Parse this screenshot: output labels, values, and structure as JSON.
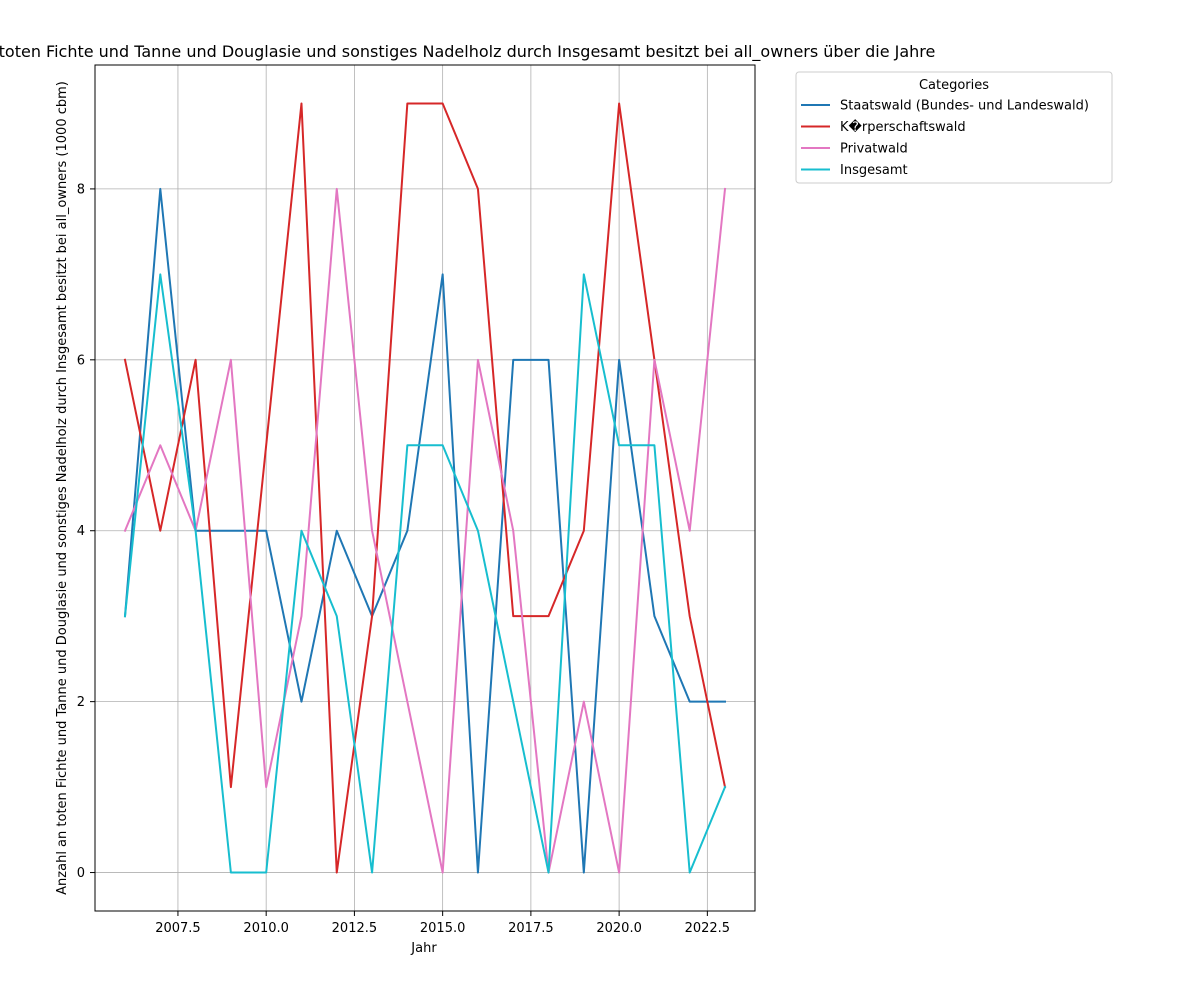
{
  "chart_data": {
    "type": "line",
    "title": "Anzahl an toten Fichte und Tanne und Douglasie und sonstiges Nadelholz durch Insgesamt besitzt bei all_owners über die Jahre",
    "xlabel": "Jahr",
    "ylabel": "Anzahl an toten Fichte und Tanne und Douglasie und sonstiges Nadelholz durch Insgesamt besitzt bei all_owners (1000 cbm)",
    "x": [
      2006,
      2007,
      2008,
      2009,
      2010,
      2011,
      2012,
      2013,
      2014,
      2015,
      2016,
      2017,
      2018,
      2019,
      2020,
      2021,
      2022,
      2023
    ],
    "xlim": [
      2005.15,
      2023.85
    ],
    "ylim": [
      -0.45,
      9.45
    ],
    "xticks": [
      2007.5,
      2010.0,
      2012.5,
      2015.0,
      2017.5,
      2020.0,
      2022.5
    ],
    "xtick_labels": [
      "2007.5",
      "2010.0",
      "2012.5",
      "2015.0",
      "2017.5",
      "2020.0",
      "2022.5"
    ],
    "yticks": [
      0,
      2,
      4,
      6,
      8
    ],
    "ytick_labels": [
      "0",
      "2",
      "4",
      "6",
      "8"
    ],
    "grid": true,
    "legend": {
      "title": "Categories",
      "placement": "outside-top-right"
    },
    "series": [
      {
        "name": "Staatswald (Bundes- und Landeswald)",
        "color": "#1f77b4",
        "values": [
          3,
          8,
          4,
          4,
          4,
          2,
          4,
          3,
          4,
          7,
          0,
          6,
          6,
          0,
          6,
          3,
          2,
          2
        ]
      },
      {
        "name": "K�rperschaftswald",
        "color": "#d62728",
        "values": [
          6,
          4,
          6,
          1,
          5,
          9,
          0,
          3,
          9,
          9,
          8,
          3,
          3,
          4,
          9,
          6,
          3,
          1
        ]
      },
      {
        "name": "Privatwald",
        "color": "#e377c2",
        "values": [
          4,
          5,
          4,
          6,
          1,
          3,
          8,
          4,
          2,
          0,
          6,
          4,
          0,
          2,
          0,
          6,
          4,
          8
        ]
      },
      {
        "name": "Insgesamt",
        "color": "#17becf",
        "values": [
          3,
          7,
          4,
          0,
          0,
          4,
          3,
          0,
          5,
          5,
          4,
          2,
          0,
          7,
          5,
          5,
          0,
          1
        ]
      }
    ]
  }
}
